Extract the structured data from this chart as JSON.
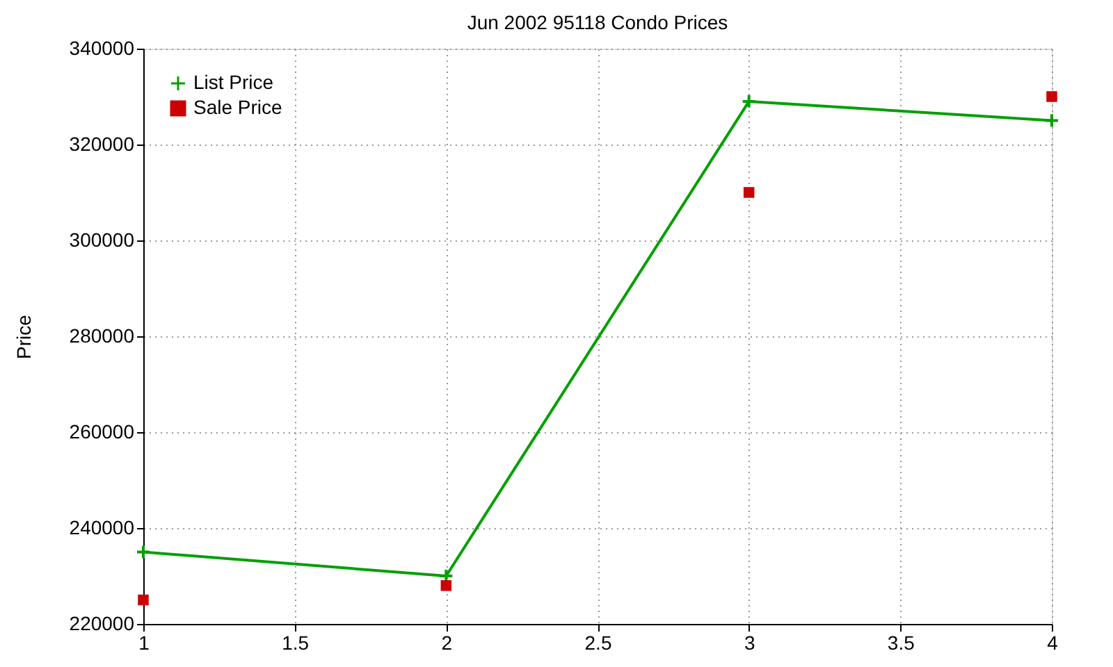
{
  "chart_data": {
    "type": "line",
    "title": "Jun 2002 95118 Condo Prices",
    "ylabel": "Price",
    "x": [
      1,
      2,
      3,
      4
    ],
    "series": [
      {
        "name": "List Price",
        "marker": "cross",
        "color": "#00a000",
        "values": [
          235000,
          230000,
          329000,
          325000
        ]
      },
      {
        "name": "Sale Price",
        "type": "scatter",
        "marker": "square",
        "color": "#cc0000",
        "values": [
          225000,
          228000,
          310000,
          330000
        ]
      }
    ],
    "xlim": [
      1,
      4
    ],
    "xticks": [
      1,
      1.5,
      2,
      2.5,
      3,
      3.5,
      4
    ],
    "ylim": [
      220000,
      340000
    ],
    "yticks": [
      220000,
      240000,
      260000,
      280000,
      300000,
      320000,
      340000
    ],
    "grid": true,
    "legend": "top left"
  }
}
